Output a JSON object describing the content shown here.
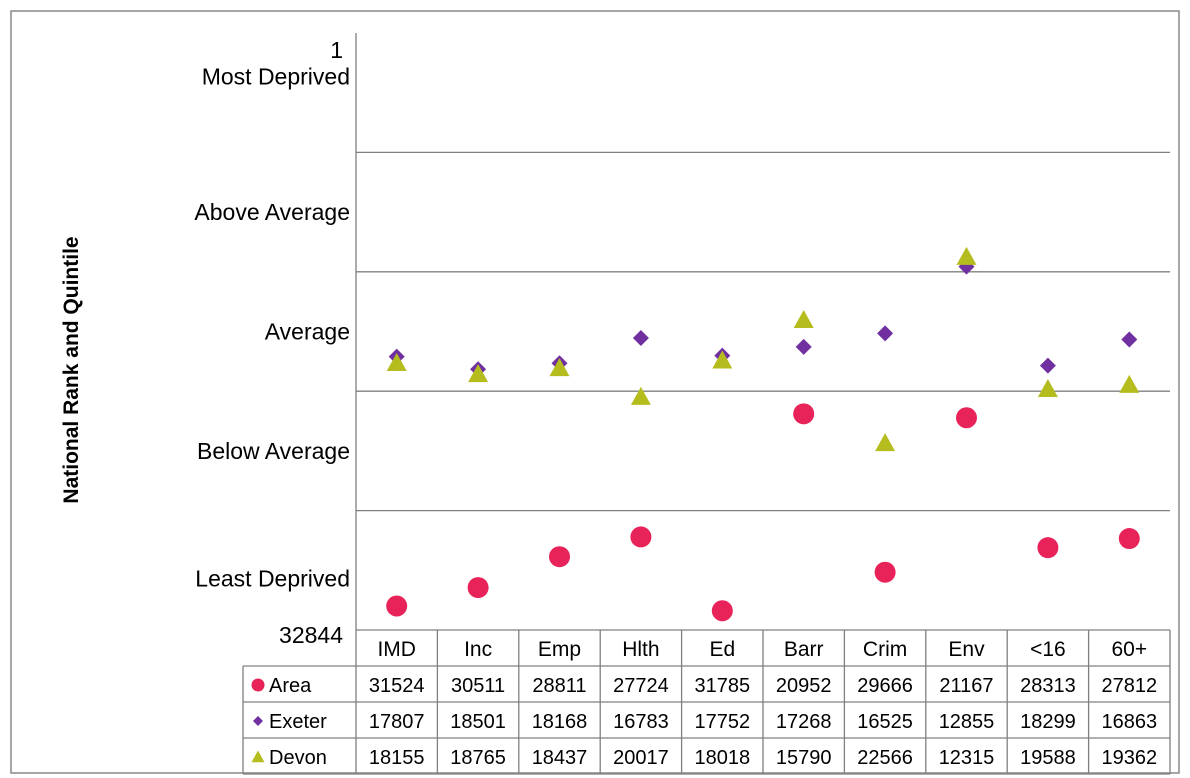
{
  "chart_data": {
    "type": "scatter",
    "ylabel": "National Rank and Quintile",
    "y_axis_top_label": "1",
    "y_axis_bottom_label": "32844",
    "ylim": [
      1,
      32844
    ],
    "y_inverted": true,
    "quintile_bands": [
      "Most Deprived",
      "Above Average",
      "Average",
      "Below Average",
      "Least Deprived"
    ],
    "categories": [
      "IMD",
      "Inc",
      "Emp",
      "Hlth",
      "Ed",
      "Barr",
      "Crim",
      "Env",
      "<16",
      "60+"
    ],
    "series": [
      {
        "name": "Area",
        "marker": "circle",
        "color": "#e8235a",
        "values": [
          31524,
          30511,
          28811,
          27724,
          31785,
          20952,
          29666,
          21167,
          28313,
          27812
        ]
      },
      {
        "name": "Exeter",
        "marker": "diamond",
        "color": "#7030a0",
        "values": [
          17807,
          18501,
          18168,
          16783,
          17752,
          17268,
          16525,
          12855,
          18299,
          16863
        ]
      },
      {
        "name": "Devon",
        "marker": "triangle",
        "color": "#b5bd1e",
        "values": [
          18155,
          18765,
          18437,
          20017,
          18018,
          15790,
          22566,
          12315,
          19588,
          19362
        ]
      }
    ],
    "grid": true,
    "legend": "data-table"
  }
}
